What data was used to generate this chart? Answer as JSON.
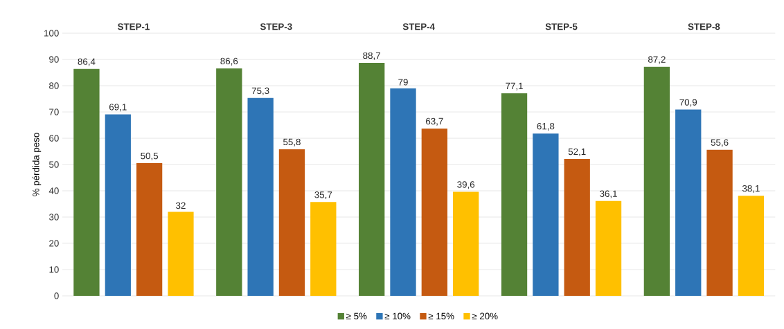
{
  "chart_data": {
    "type": "bar",
    "ylabel": "% pérdida peso",
    "categories": [
      "STEP-1",
      "STEP-3",
      "STEP-4",
      "STEP-5",
      "STEP-8"
    ],
    "series": [
      {
        "name": "≥ 5%",
        "color": "#548235",
        "values": [
          86.4,
          86.6,
          88.7,
          77.1,
          87.2
        ],
        "value_labels": [
          "86,4",
          "86,6",
          "88,7",
          "77,1",
          "87,2"
        ]
      },
      {
        "name": "≥ 10%",
        "color": "#2e75b6",
        "values": [
          69.1,
          75.3,
          79,
          61.8,
          70.9
        ],
        "value_labels": [
          "69,1",
          "75,3",
          "79",
          "61,8",
          "70,9"
        ]
      },
      {
        "name": "≥ 15%",
        "color": "#c55a11",
        "values": [
          50.5,
          55.8,
          63.7,
          52.1,
          55.6
        ],
        "value_labels": [
          "50,5",
          "55,8",
          "63,7",
          "52,1",
          "55,6"
        ]
      },
      {
        "name": "≥ 20%",
        "color": "#ffc000",
        "values": [
          32,
          35.7,
          39.6,
          36.1,
          38.1
        ],
        "value_labels": [
          "32",
          "35,7",
          "39,6",
          "36,1",
          "38,1"
        ]
      }
    ],
    "ylim": [
      0,
      100
    ],
    "yticks": [
      0,
      10,
      20,
      30,
      40,
      50,
      60,
      70,
      80,
      90,
      100
    ],
    "grid": "y",
    "legend": "bottom"
  }
}
